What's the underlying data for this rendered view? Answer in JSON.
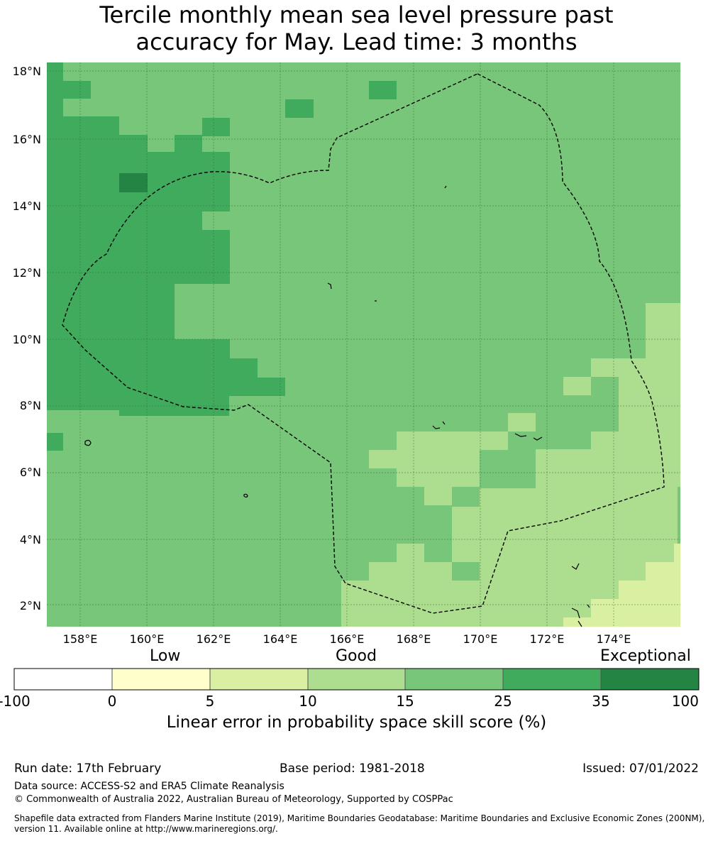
{
  "title": {
    "line1": "Tercile monthly mean sea level pressure past",
    "line2": "accuracy for May. Lead time: 3 months"
  },
  "map": {
    "lon_ticks": [
      "158°E",
      "160°E",
      "162°E",
      "164°E",
      "166°E",
      "168°E",
      "170°E",
      "172°E",
      "174°E"
    ],
    "lat_ticks": [
      "18°N",
      "16°N",
      "14°N",
      "12°N",
      "10°N",
      "8°N",
      "6°N",
      "4°N",
      "2°N"
    ],
    "colors": {
      "lvl0": "#ffffff",
      "lvl1": "#ffffcc",
      "lvl2": "#d9f0a3",
      "lvl3": "#addd8e",
      "lvl4": "#78c679",
      "lvl5": "#41ab5d",
      "lvl6": "#238443",
      "grid": "#2e5e2e",
      "boundary": "#000000"
    }
  },
  "legend": {
    "categories": [
      "Low",
      "Good",
      "Exceptional"
    ],
    "ticks": [
      "-100",
      "0",
      "5",
      "10",
      "15",
      "25",
      "35",
      "100"
    ],
    "label": "Linear error in probability space skill score (%)"
  },
  "footer": {
    "run_date": "Run date: 17th February",
    "base_period": "Base period: 1981-2018",
    "issued": "Issued: 07/01/2022",
    "data_source": "Data source: ACCESS-S2 and ERA5 Climate Reanalysis",
    "copyright": "© Commonwealth of Australia 2022, Australian Bureau of Meteorology, Supported by COSPPac",
    "shapefile_line1": "Shapefile data extracted from Flanders Marine Institute (2019), Maritime Boundaries Geodatabase: Maritime Boundaries and Exclusive Economic Zones (200NM),",
    "shapefile_line2": "version 11. Available online at http://www.marineregions.org/."
  }
}
